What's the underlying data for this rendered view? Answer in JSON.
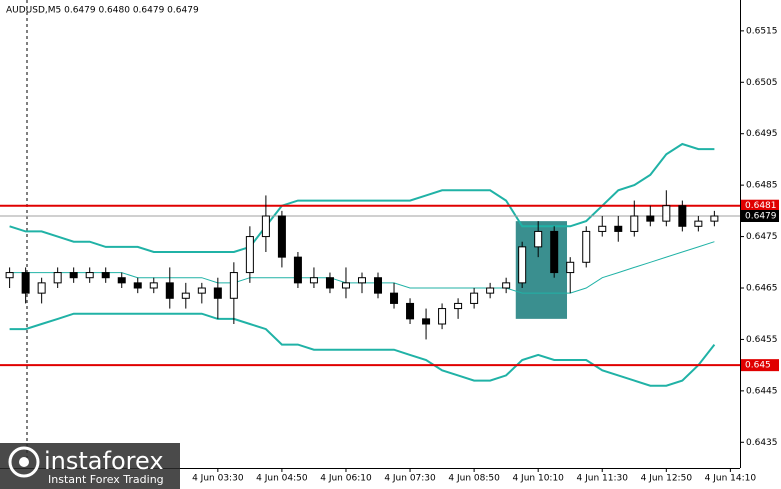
{
  "chart_data": {
    "type": "candlestick",
    "title": "AUDUSD,M5  0.6479 0.6480 0.6479 0.6479",
    "open": [
      0.6467,
      0.6468,
      0.6464,
      0.6466,
      0.6468,
      0.6467,
      0.6468,
      0.6467,
      0.6466,
      0.6465,
      0.6466,
      0.6463,
      0.6464,
      0.6465,
      0.6463,
      0.6468,
      0.6475,
      0.6479,
      0.6471,
      0.6466,
      0.6467,
      0.6465,
      0.6466,
      0.6467,
      0.6464,
      0.6462,
      0.6459,
      0.6458,
      0.6461,
      0.6462,
      0.6464,
      0.6465,
      0.6466,
      0.6473,
      0.6476,
      0.6468,
      0.647,
      0.6476,
      0.6477,
      0.6476,
      0.6479,
      0.6478,
      0.6481,
      0.6477,
      0.6478
    ],
    "high": [
      0.6469,
      0.6469,
      0.6467,
      0.6469,
      0.6469,
      0.6469,
      0.6469,
      0.6468,
      0.6467,
      0.6467,
      0.6469,
      0.6466,
      0.6466,
      0.6467,
      0.647,
      0.6477,
      0.6483,
      0.648,
      0.6472,
      0.6469,
      0.6468,
      0.6469,
      0.6468,
      0.6468,
      0.6466,
      0.6463,
      0.6461,
      0.6462,
      0.6463,
      0.6465,
      0.6466,
      0.6467,
      0.6474,
      0.6478,
      0.6477,
      0.6471,
      0.6477,
      0.6479,
      0.6479,
      0.6482,
      0.6481,
      0.6484,
      0.6482,
      0.6479,
      0.648
    ],
    "low": [
      0.6465,
      0.6462,
      0.6462,
      0.6465,
      0.6466,
      0.6466,
      0.6466,
      0.6465,
      0.6464,
      0.6464,
      0.6461,
      0.6461,
      0.6462,
      0.6459,
      0.6458,
      0.6466,
      0.6472,
      0.6469,
      0.6465,
      0.6465,
      0.6464,
      0.6463,
      0.6464,
      0.6463,
      0.6461,
      0.6458,
      0.6455,
      0.6457,
      0.6459,
      0.6461,
      0.6463,
      0.6464,
      0.6465,
      0.6471,
      0.6467,
      0.6464,
      0.6469,
      0.6475,
      0.6474,
      0.6475,
      0.6477,
      0.6477,
      0.6476,
      0.6476,
      0.6477
    ],
    "close": [
      0.6468,
      0.6464,
      0.6466,
      0.6468,
      0.6467,
      0.6468,
      0.6467,
      0.6466,
      0.6465,
      0.6466,
      0.6463,
      0.6464,
      0.6465,
      0.6463,
      0.6468,
      0.6475,
      0.6479,
      0.6471,
      0.6466,
      0.6467,
      0.6465,
      0.6466,
      0.6467,
      0.6464,
      0.6462,
      0.6459,
      0.6458,
      0.6461,
      0.6462,
      0.6464,
      0.6465,
      0.6466,
      0.6473,
      0.6476,
      0.6468,
      0.647,
      0.6476,
      0.6477,
      0.6476,
      0.6479,
      0.6478,
      0.6481,
      0.6477,
      0.6478,
      0.6479
    ],
    "bands": {
      "color": "#20b2a6",
      "upper": [
        0.6477,
        0.6476,
        0.6476,
        0.6475,
        0.6474,
        0.6474,
        0.6473,
        0.6473,
        0.6473,
        0.6472,
        0.6472,
        0.6472,
        0.6472,
        0.6472,
        0.6472,
        0.6473,
        0.6477,
        0.6481,
        0.6482,
        0.6482,
        0.6482,
        0.6482,
        0.6482,
        0.6482,
        0.6482,
        0.6482,
        0.6483,
        0.6484,
        0.6484,
        0.6484,
        0.6484,
        0.6482,
        0.6477,
        0.6477,
        0.6477,
        0.6477,
        0.6478,
        0.6481,
        0.6484,
        0.6485,
        0.6487,
        0.6491,
        0.6493,
        0.6492,
        0.6492
      ],
      "middle": [
        0.6468,
        0.6468,
        0.6468,
        0.6468,
        0.6468,
        0.6468,
        0.6468,
        0.6468,
        0.6467,
        0.6467,
        0.6467,
        0.6467,
        0.6467,
        0.6466,
        0.6466,
        0.6467,
        0.6467,
        0.6467,
        0.6467,
        0.6467,
        0.6467,
        0.6466,
        0.6466,
        0.6466,
        0.6466,
        0.6465,
        0.6465,
        0.6465,
        0.6465,
        0.6465,
        0.6465,
        0.6465,
        0.6464,
        0.6464,
        0.6464,
        0.6464,
        0.6465,
        0.6467,
        0.6468,
        0.6469,
        0.647,
        0.6471,
        0.6472,
        0.6473,
        0.6474
      ],
      "lower": [
        0.6457,
        0.6457,
        0.6458,
        0.6459,
        0.646,
        0.646,
        0.646,
        0.646,
        0.646,
        0.646,
        0.646,
        0.646,
        0.646,
        0.6459,
        0.6459,
        0.6458,
        0.6457,
        0.6454,
        0.6454,
        0.6453,
        0.6453,
        0.6453,
        0.6453,
        0.6453,
        0.6453,
        0.6452,
        0.6451,
        0.6449,
        0.6448,
        0.6447,
        0.6447,
        0.6448,
        0.6451,
        0.6452,
        0.6451,
        0.6451,
        0.6451,
        0.6449,
        0.6448,
        0.6447,
        0.6446,
        0.6446,
        0.6447,
        0.645,
        0.6454
      ]
    },
    "highlight": {
      "color": "#3a8f8f",
      "x": [
        31.6,
        34.8
      ],
      "y": [
        0.6459,
        0.6478
      ]
    },
    "levels": [
      {
        "value": 0.6481,
        "color": "#e00000"
      },
      {
        "value": 0.645,
        "color": "#e00000"
      }
    ],
    "current_price": {
      "value": 0.6479,
      "color": "#a0a0a0"
    },
    "xlim": [
      -0.6,
      45.6
    ],
    "xticks": [
      {
        "value": 13,
        "label": "4 Jun 03:30"
      },
      {
        "value": 17,
        "label": "4 Jun 04:50"
      },
      {
        "value": 21,
        "label": "4 Jun 06:10"
      },
      {
        "value": 25,
        "label": "4 Jun 07:30"
      },
      {
        "value": 29,
        "label": "4 Jun 08:50"
      },
      {
        "value": 33,
        "label": "4 Jun 10:10"
      },
      {
        "value": 37,
        "label": "4 Jun 11:30"
      },
      {
        "value": 41,
        "label": "4 Jun 12:50"
      },
      {
        "value": 45,
        "label": "4 Jun 14:10"
      }
    ],
    "ylim": [
      0.643,
      0.6521
    ],
    "yticks": [
      0.6435,
      0.6445,
      0.6455,
      0.6465,
      0.6475,
      0.6485,
      0.6495,
      0.6505,
      0.6515
    ]
  },
  "watermark": {
    "brand": "instaforex",
    "tagline": "Instant Forex Trading"
  }
}
